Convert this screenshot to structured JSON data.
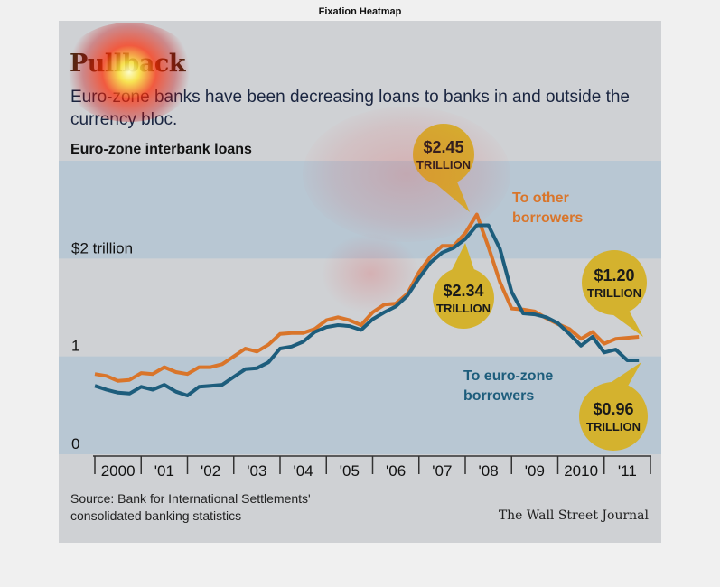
{
  "figure_title": "Fixation Heatmap",
  "headline": "Pullback",
  "subtitle": "Euro-zone banks have been decreasing loans to banks in and outside the currency bloc.",
  "chart_heading": "Euro-zone interbank loans",
  "source": "Source: Bank for International Settlements' consolidated banking statistics",
  "credit": "The Wall Street Journal",
  "colors": {
    "other_borrowers": "#d9752a",
    "eurozone_borrowers": "#1d5d7c",
    "callout": "#d4b22e",
    "band": "#b8c7d3",
    "heat_core": "#ffff99",
    "heat_mid": "#ff2a00"
  },
  "callouts": [
    {
      "value": "$2.45",
      "unit": "TRILLION"
    },
    {
      "value": "$2.34",
      "unit": "TRILLION"
    },
    {
      "value": "$1.20",
      "unit": "TRILLION"
    },
    {
      "value": "$0.96",
      "unit": "TRILLION"
    }
  ],
  "chart_data": {
    "type": "line",
    "title": "Euro-zone interbank loans",
    "ytick_labels": [
      "0",
      "1",
      "$2 trillion"
    ],
    "yticks": [
      0,
      1,
      2
    ],
    "ylim": [
      0,
      3
    ],
    "xtick_labels": [
      "2000",
      "'01",
      "'02",
      "'03",
      "'04",
      "'05",
      "'06",
      "'07",
      "'08",
      "'09",
      "2010",
      "'11"
    ],
    "xlim": [
      2000,
      2012
    ],
    "grid": "alternating bands",
    "series": [
      {
        "name": "To other borrowers",
        "color": "#d9752a",
        "x": [
          2000.0,
          2000.25,
          2000.5,
          2000.75,
          2001.0,
          2001.25,
          2001.5,
          2001.75,
          2002.0,
          2002.25,
          2002.5,
          2002.75,
          2003.0,
          2003.25,
          2003.5,
          2003.75,
          2004.0,
          2004.25,
          2004.5,
          2004.75,
          2005.0,
          2005.25,
          2005.5,
          2005.75,
          2006.0,
          2006.25,
          2006.5,
          2006.75,
          2007.0,
          2007.25,
          2007.5,
          2007.75,
          2008.0,
          2008.25,
          2008.5,
          2008.75,
          2009.0,
          2009.25,
          2009.5,
          2009.75,
          2010.0,
          2010.25,
          2010.5,
          2010.75,
          2011.0,
          2011.25,
          2011.5,
          2011.75
        ],
        "values": [
          0.82,
          0.8,
          0.75,
          0.76,
          0.83,
          0.82,
          0.89,
          0.84,
          0.82,
          0.89,
          0.89,
          0.92,
          1.0,
          1.08,
          1.05,
          1.12,
          1.23,
          1.24,
          1.24,
          1.28,
          1.37,
          1.4,
          1.37,
          1.32,
          1.45,
          1.53,
          1.54,
          1.64,
          1.86,
          2.02,
          2.13,
          2.13,
          2.26,
          2.45,
          2.12,
          1.76,
          1.49,
          1.48,
          1.46,
          1.39,
          1.33,
          1.28,
          1.18,
          1.25,
          1.13,
          1.18,
          1.19,
          1.2
        ]
      },
      {
        "name": "To euro-zone borrowers",
        "color": "#1d5d7c",
        "x": [
          2000.0,
          2000.25,
          2000.5,
          2000.75,
          2001.0,
          2001.25,
          2001.5,
          2001.75,
          2002.0,
          2002.25,
          2002.5,
          2002.75,
          2003.0,
          2003.25,
          2003.5,
          2003.75,
          2004.0,
          2004.25,
          2004.5,
          2004.75,
          2005.0,
          2005.25,
          2005.5,
          2005.75,
          2006.0,
          2006.25,
          2006.5,
          2006.75,
          2007.0,
          2007.25,
          2007.5,
          2007.75,
          2008.0,
          2008.25,
          2008.5,
          2008.75,
          2009.0,
          2009.25,
          2009.5,
          2009.75,
          2010.0,
          2010.25,
          2010.5,
          2010.75,
          2011.0,
          2011.25,
          2011.5,
          2011.75
        ],
        "values": [
          0.7,
          0.66,
          0.63,
          0.62,
          0.69,
          0.66,
          0.71,
          0.64,
          0.6,
          0.69,
          0.7,
          0.71,
          0.79,
          0.87,
          0.88,
          0.94,
          1.08,
          1.1,
          1.15,
          1.25,
          1.3,
          1.32,
          1.31,
          1.27,
          1.38,
          1.45,
          1.51,
          1.62,
          1.8,
          1.96,
          2.06,
          2.11,
          2.2,
          2.34,
          2.34,
          2.1,
          1.66,
          1.44,
          1.43,
          1.4,
          1.34,
          1.23,
          1.11,
          1.2,
          1.04,
          1.07,
          0.96,
          0.96
        ]
      }
    ]
  }
}
